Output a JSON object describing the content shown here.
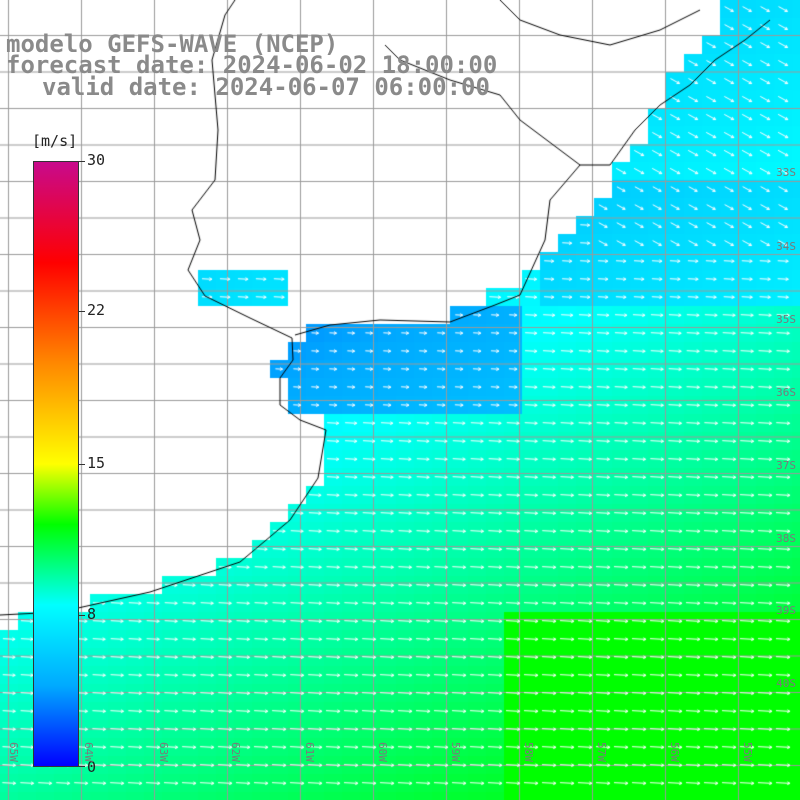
{
  "title": {
    "line1": "modelo GEFS-WAVE (NCEP)",
    "line2": "forecast date: 2024-06-02 18:00:00",
    "line3": "valid date: 2024-06-07 06:00:00"
  },
  "legend": {
    "unit": "[m/s]",
    "min": 0,
    "max": 30,
    "ticks": [
      "30",
      "22",
      "15",
      "8",
      "0"
    ],
    "tick_values": [
      30,
      22,
      15,
      8,
      0
    ],
    "gradient_colors": [
      "#0000ff",
      "#00aaff",
      "#00ffff",
      "#00ff00",
      "#ffff00",
      "#ff8800",
      "#ff0000",
      "#c80a8c"
    ],
    "gradient_stops": [
      0,
      4,
      8,
      12,
      15,
      20,
      25,
      30
    ]
  },
  "map": {
    "lat_labels": [
      "33S",
      "34S",
      "35S",
      "36S",
      "37S",
      "38S",
      "39S",
      "40S"
    ],
    "lon_labels": [
      "65W",
      "64W",
      "63W",
      "62W",
      "61W",
      "60W",
      "59W",
      "58W",
      "57W",
      "56W",
      "55W"
    ],
    "land_color": "#ffffff",
    "grid_color": "#9a9a9a",
    "coast_color": "#000000",
    "arrow_color": "#ffffff"
  }
}
